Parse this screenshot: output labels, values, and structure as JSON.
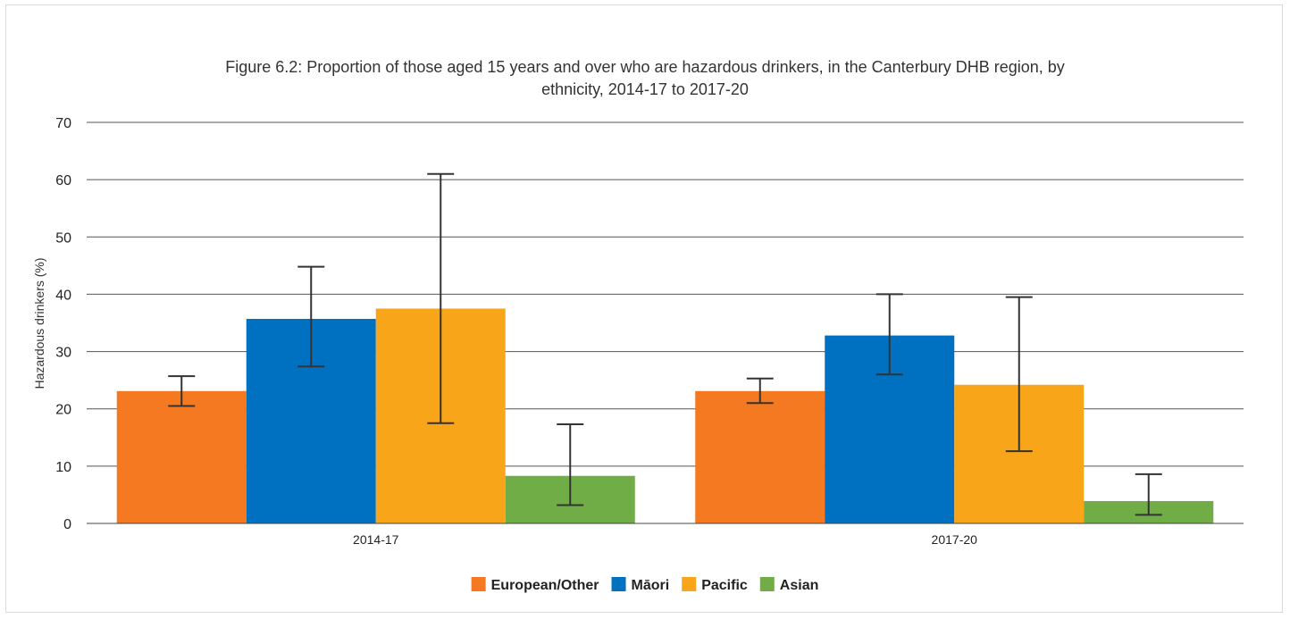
{
  "chart_data": {
    "type": "bar",
    "title_lines": [
      "Figure 6.2: Proportion of those aged 15 years and over who are hazardous drinkers, in the Canterbury DHB region, by",
      "ethnicity, 2014-17 to 2017-20"
    ],
    "ylabel": "Hazardous drinkers (%)",
    "xlabel": "",
    "ylim": [
      0,
      70
    ],
    "yticks": [
      0,
      10,
      20,
      30,
      40,
      50,
      60,
      70
    ],
    "grid": true,
    "legend_position": "bottom",
    "categories": [
      "2014-17",
      "2017-20"
    ],
    "series": [
      {
        "name": "European/Other",
        "color": "#f47920",
        "values": [
          23.1,
          23.1
        ],
        "lower": [
          20.5,
          21.0
        ],
        "upper": [
          25.7,
          25.3
        ]
      },
      {
        "name": "Māori",
        "color": "#0070c0",
        "values": [
          35.7,
          32.8
        ],
        "lower": [
          27.4,
          26.0
        ],
        "upper": [
          44.8,
          40.0
        ]
      },
      {
        "name": "Pacific",
        "color": "#f9a51a",
        "values": [
          37.5,
          24.2
        ],
        "lower": [
          17.5,
          12.6
        ],
        "upper": [
          61.0,
          39.5
        ]
      },
      {
        "name": "Asian",
        "color": "#70ad47",
        "values": [
          8.3,
          3.9
        ],
        "lower": [
          3.2,
          1.5
        ],
        "upper": [
          17.3,
          8.6
        ]
      }
    ],
    "errorbar_color": "#333333"
  }
}
